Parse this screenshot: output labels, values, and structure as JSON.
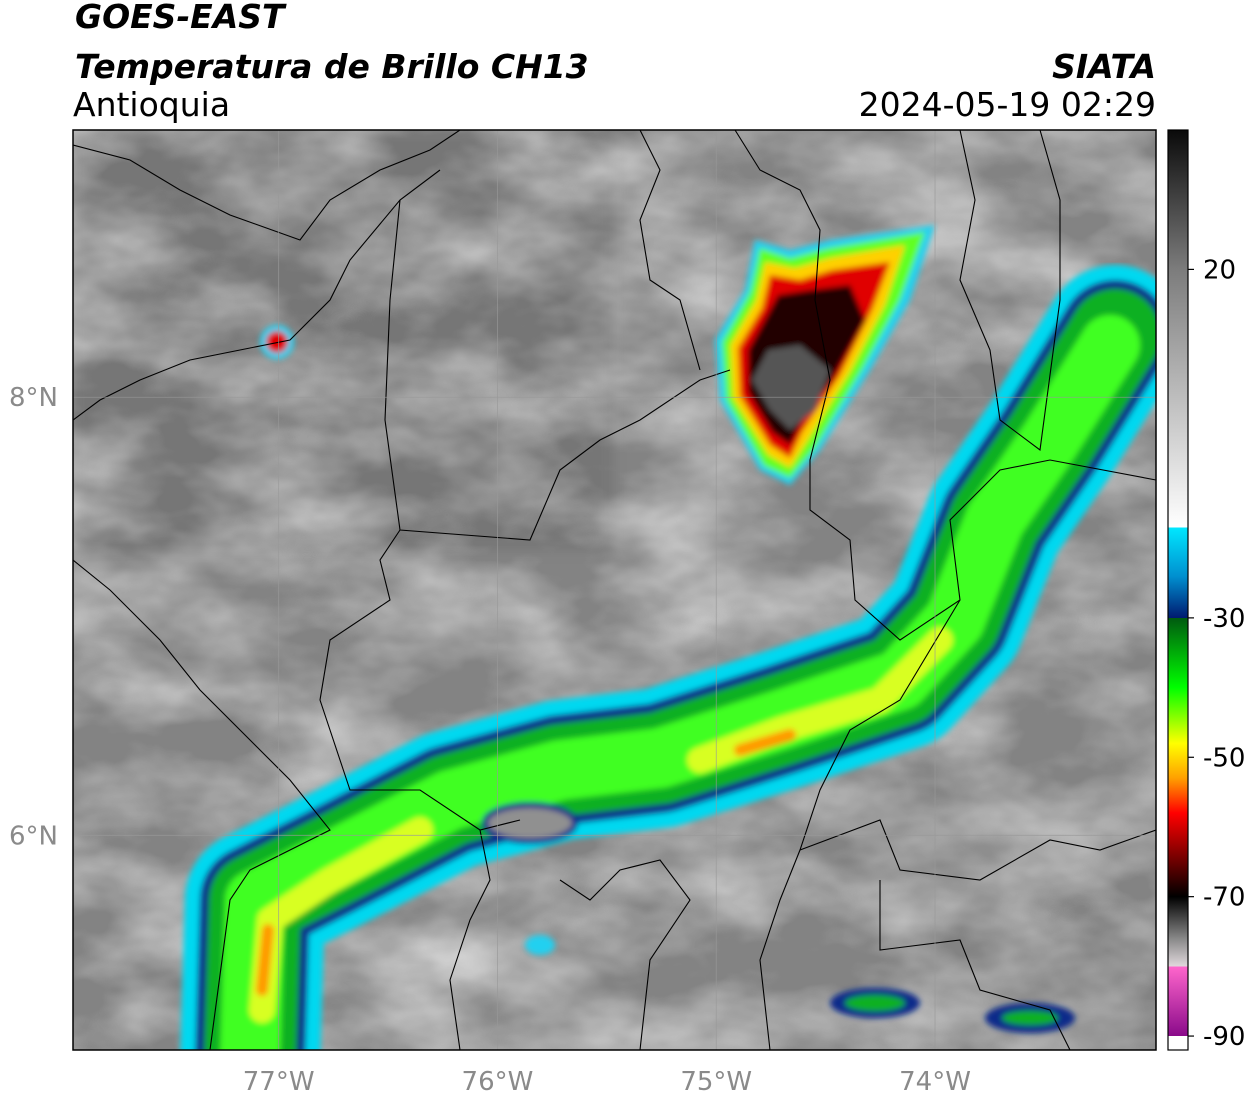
{
  "title": "GOES-EAST",
  "subtitle": "Temperatura de Brillo CH13",
  "region": "Antioquia",
  "source": "SIATA",
  "datetime": "2024-05-19 02:29",
  "map": {
    "lonlim": [
      -77.94,
      -72.99
    ],
    "latlim": [
      5.02,
      9.22
    ],
    "lonticks": [
      {
        "value": -77,
        "label": "77°W"
      },
      {
        "value": -76,
        "label": "76°W"
      },
      {
        "value": -75,
        "label": "75°W"
      },
      {
        "value": -74,
        "label": "74°W"
      }
    ],
    "latticks": [
      {
        "value": 6,
        "label": "6°N"
      },
      {
        "value": 8,
        "label": "8°N"
      }
    ],
    "grid": true
  },
  "colorbar": {
    "lim": [
      -92,
      40
    ],
    "ticks": [
      20,
      -30,
      -50,
      -70,
      -90
    ],
    "stops": [
      [
        40,
        "#0a0a0a"
      ],
      [
        20,
        "#7c7c7c"
      ],
      [
        -17,
        "#ffffff"
      ],
      [
        -17,
        "#00e8ff"
      ],
      [
        -24,
        "#0090d0"
      ],
      [
        -30,
        "#001a70"
      ],
      [
        -30,
        "#005a10"
      ],
      [
        -40,
        "#00ff00"
      ],
      [
        -48,
        "#ffff00"
      ],
      [
        -53,
        "#ffa000"
      ],
      [
        -58,
        "#ff0000"
      ],
      [
        -64,
        "#800000"
      ],
      [
        -70,
        "#000000"
      ],
      [
        -76,
        "#888888"
      ],
      [
        -80,
        "#e0d8dc"
      ],
      [
        -80,
        "#ff66cc"
      ],
      [
        -90,
        "#8a0a8a"
      ],
      [
        -90,
        "#ffffff"
      ],
      [
        -92,
        "#ffffff"
      ]
    ]
  }
}
